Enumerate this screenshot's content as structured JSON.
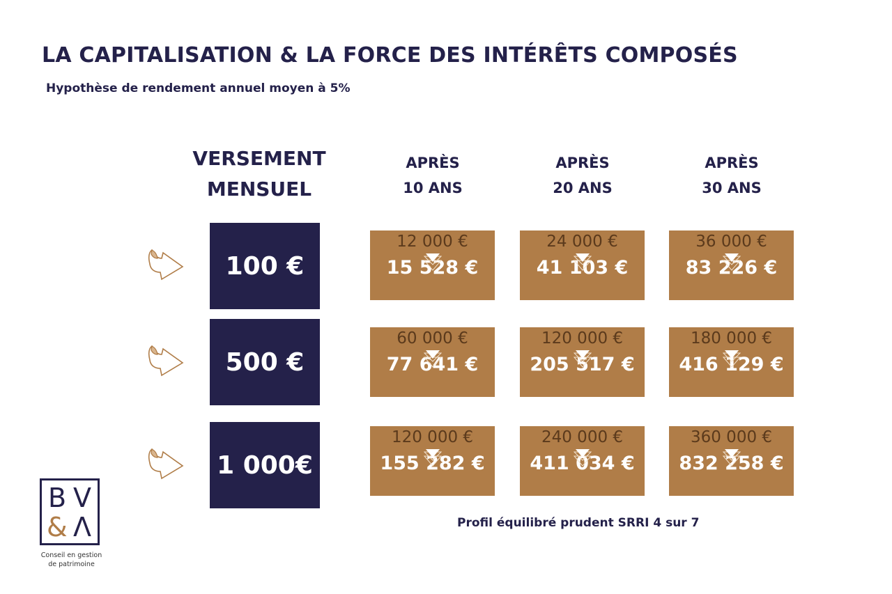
{
  "title": "LA CAPITALISATION & LA FORCE DES INTÉRÊTS COMPOSÉS",
  "subtitle": "Hypothèse de rendement annuel moyen à 5%",
  "header": {
    "versement_line1": "VERSEMENT",
    "versement_line2": "MENSUEL",
    "columns": [
      {
        "l1": "APRÈS",
        "l2": "10 ANS"
      },
      {
        "l1": "APRÈS",
        "l2": "20 ANS"
      },
      {
        "l1": "APRÈS",
        "l2": "30 ANS"
      }
    ]
  },
  "rows": [
    {
      "monthly": "100 €",
      "cells": [
        {
          "invested": "12 000 €",
          "result": "15 528 €"
        },
        {
          "invested": "24 000 €",
          "result": "41 103 €"
        },
        {
          "invested": "36 000 €",
          "result": "83 226 €"
        }
      ]
    },
    {
      "monthly": "500 €",
      "cells": [
        {
          "invested": "60 000 €",
          "result": "77 641 €"
        },
        {
          "invested": "120 000 €",
          "result": "205 517 €"
        },
        {
          "invested": "180 000 €",
          "result": "416 129 €"
        }
      ]
    },
    {
      "monthly": "1 000€",
      "cells": [
        {
          "invested": "120 000 €",
          "result": "155 282 €"
        },
        {
          "invested": "240 000 €",
          "result": "411 034 €"
        },
        {
          "invested": "360 000 €",
          "result": "832 258 €"
        }
      ]
    }
  ],
  "profile": "Profil équilibré prudent SRRI 4 sur 7",
  "logo": {
    "l1": "B",
    "l2": "V",
    "l3": "&",
    "l4": "Λ",
    "tagline1": "Conseil en gestion",
    "tagline2": "de patrimoine"
  },
  "colors": {
    "navy": "#24214a",
    "gold": "#b07d48",
    "brown_text": "#5b3a1c"
  },
  "icons": {
    "row_arrow": "curled-arrow-right-icon",
    "cell_arrow": "triangle-down-icon"
  }
}
